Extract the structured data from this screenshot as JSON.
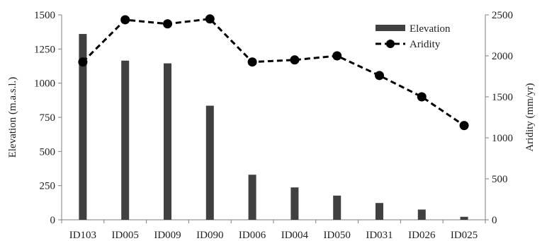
{
  "chart_data": {
    "type": "bar",
    "categories": [
      "ID103",
      "ID005",
      "ID009",
      "ID090",
      "ID006",
      "ID004",
      "ID050",
      "ID031",
      "ID026",
      "ID025"
    ],
    "series": [
      {
        "name": "Elevation",
        "type": "bar",
        "axis": "left",
        "color": "#404040",
        "values": [
          1360,
          1165,
          1145,
          835,
          330,
          237,
          177,
          123,
          75,
          22
        ]
      },
      {
        "name": "Aridity",
        "type": "line",
        "axis": "right",
        "color": "#000000",
        "line_style": "dashed",
        "marker": "circle",
        "values": [
          1925,
          2440,
          2390,
          2450,
          1925,
          1950,
          2000,
          1760,
          1500,
          1150
        ]
      }
    ],
    "ylabel": "Elevation  (m.a.s.l.)",
    "ylim": [
      0,
      1500
    ],
    "yticks": [
      "0",
      "250",
      "500",
      "750",
      "1000",
      "1250",
      "1500"
    ],
    "y2label": "Aridity  (mm/yr)",
    "y2lim": [
      0,
      2500
    ],
    "y2ticks": [
      "0",
      "500",
      "1000",
      "1500",
      "2000",
      "2500"
    ],
    "grid": false,
    "legend_position": "top-right"
  }
}
